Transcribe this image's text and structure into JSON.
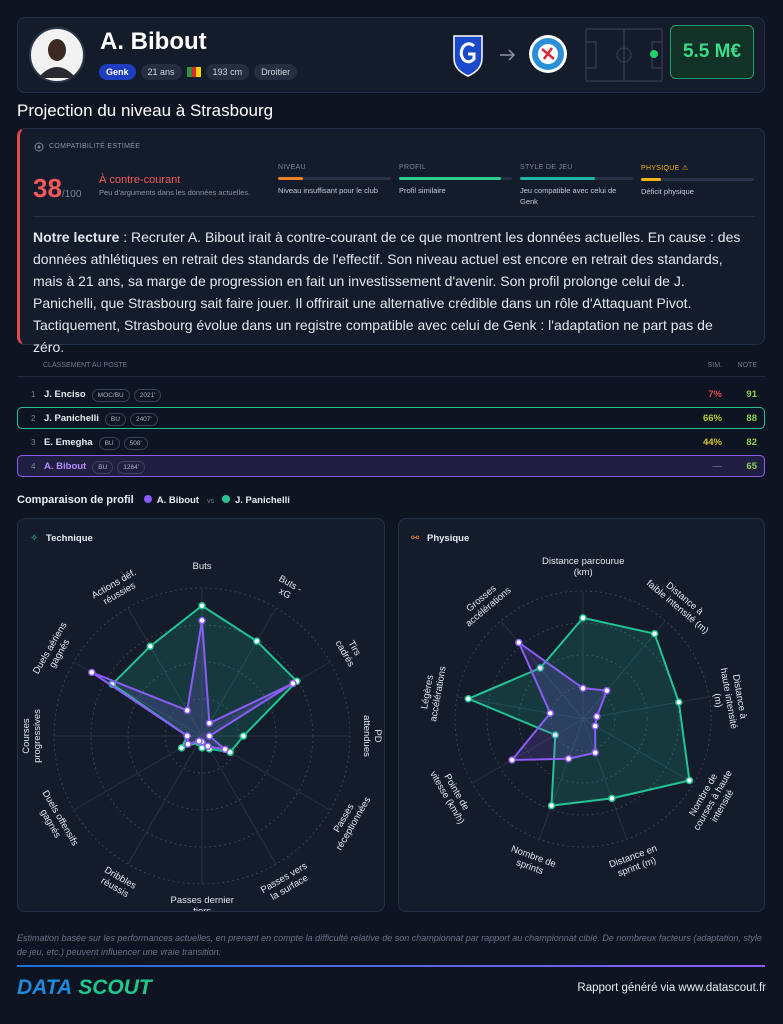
{
  "header": {
    "name": "A. Bibout",
    "tags": [
      "Genk",
      "21 ans",
      "193 cm",
      "Droitier"
    ],
    "value": "5.5 M€"
  },
  "projection": {
    "title": "Projection du niveau à Strasbourg",
    "heading": "COMPATIBILITÉ ESTIMÉE",
    "score": "38",
    "score_max": "/100",
    "verdict": "À contre-courant",
    "verdict_sub": "Peu d'arguments dans les données actuelles.",
    "criteria": [
      {
        "label": "NIVEAU",
        "text": "Niveau insuffisant pour le club",
        "value": 22,
        "color": "#f07f2a"
      },
      {
        "label": "PROFIL",
        "text": "Profil similaire",
        "value": 90,
        "color": "#2ecc8f"
      },
      {
        "label": "STYLE DE JEU",
        "text": "Jeu compatible avec celui de Genk",
        "value": 66,
        "color": "#1fb5a3"
      },
      {
        "label": "PHYSIQUE ⚠",
        "text": "Déficit physique",
        "value": 18,
        "color": "#f5b316"
      }
    ],
    "reading_lead": "Notre lecture",
    "reading": ": Recruter A. Bibout irait à contre-courant de ce que montrent les données actuelles. En cause : des données athlétiques en retrait des standards de l'effectif. Son niveau actuel est encore en retrait des standards, mais à 21 ans, sa marge de progression en fait un investissement d'avenir. Son profil prolonge celui de J. Panichelli, que Strasbourg sait faire jouer. Il offrirait une alternative crédible dans un rôle d'Attaquant Pivot. Tactiquement, Strasbourg évolue dans un registre compatible avec celui de Genk : l'adaptation ne part pas de zéro."
  },
  "ranking": {
    "title": "CLASSEMENT AU POSTE",
    "sim": "SIM.",
    "note": "NOTE",
    "rows": [
      {
        "rank": "1",
        "name": "J. Enciso",
        "position": "MOC/BU",
        "minutes": "2021'",
        "sim": "7%",
        "note": "91",
        "sim_color": "#e5484d"
      },
      {
        "rank": "2",
        "name": "J. Panichelli",
        "position": "BU",
        "minutes": "2407'",
        "sim": "66%",
        "note": "88",
        "sim_color": "#b5cf2e"
      },
      {
        "rank": "3",
        "name": "E. Emegha",
        "position": "BU",
        "minutes": "508'",
        "sim": "44%",
        "note": "82",
        "sim_color": "#d2c52a"
      },
      {
        "rank": "4",
        "name": "A. Bibout",
        "position": "BU",
        "minutes": "1264'",
        "sim": "—",
        "note": "65",
        "sim_color": "#5b6478"
      }
    ]
  },
  "comparison": {
    "title": "Comparaison de profil",
    "vs": "vs"
  },
  "chart_data": [
    {
      "type": "radar",
      "title": "Technique",
      "rlim": [
        0,
        100
      ],
      "categories": [
        "Buts",
        "Buts -\nxG",
        "Tirs\ncadrés",
        "PD\nattendues",
        "Passes\nréceptionnées",
        "Passes vers\nla surface",
        "Passes dernier\ntiers",
        "Dribbles\nréussis",
        "Duels offensifs\ngagnés",
        "Courses\nprogressives",
        "Duels aériens\ngagnés",
        "Actions déf.\nréussies"
      ],
      "series": [
        {
          "name": "A. Bibout",
          "color": "#8b5cf6",
          "values": [
            78,
            10,
            71,
            5,
            18,
            8,
            4,
            4,
            11,
            10,
            86,
            20
          ]
        },
        {
          "name": "J. Panichelli",
          "color": "#22c493",
          "values": [
            88,
            74,
            74,
            28,
            22,
            10,
            8,
            5,
            16,
            10,
            70,
            70
          ]
        }
      ]
    },
    {
      "type": "radar",
      "title": "Physique",
      "rlim": [
        0,
        100
      ],
      "categories": [
        "Distance parcourue\n(km)",
        "Distance à\nfaible intensité (m)",
        "Distance à\nhaute intensité (m)",
        "Nombre de\ncourses à haute intensité",
        "Distance en\nsprint (m)",
        "Nombre de\nsprints",
        "Pointe de\nvitesse (km/h)",
        "Légères\naccélérations",
        "Grosses\naccélérations"
      ],
      "series": [
        {
          "name": "A. Bibout",
          "color": "#8b5cf6",
          "values": [
            24,
            29,
            11,
            11,
            28,
            33,
            64,
            26,
            78
          ]
        },
        {
          "name": "J. Panichelli",
          "color": "#22c493",
          "values": [
            79,
            87,
            76,
            96,
            66,
            72,
            25,
            91,
            52
          ]
        }
      ]
    }
  ],
  "footer": {
    "note": "Estimation basée sur les performances actuelles, en prenant en compte la difficulté relative de son championnat par rapport au championnat ciblé. De nombreux facteurs (adaptation, style de jeu, etc.) peuvent influencer une vraie transition.",
    "logo": [
      "DATA",
      "SCOUT"
    ],
    "credit": "Rapport généré via www.datascout.fr"
  }
}
